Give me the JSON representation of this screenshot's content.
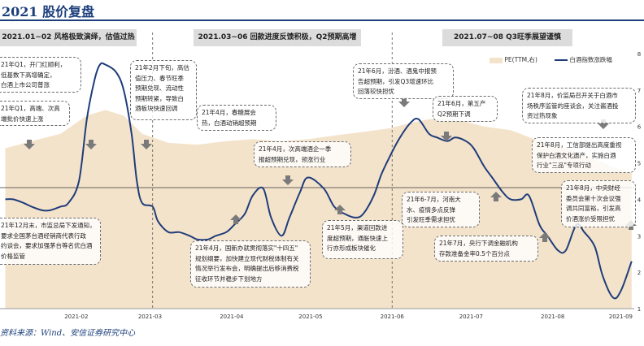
{
  "title": "2021 股价复盘",
  "source": "资料来源：Wind、安信证券研究中心",
  "colors": {
    "line": "#1f3d7a",
    "area": "#f4e3cb",
    "phase_bg": "#dcdcdc",
    "heading": "#1c3f7c"
  },
  "phases": [
    "2021.01~02 风格极致演绎，估值过热",
    "2021.03~06 回款进度反馈积极，Q2预期高增",
    "2021.07~08 Q3旺季展望谨慎"
  ],
  "notes": [
    "21年Q1，开门红顺利，\n低基数下高增确定，\n白酒上市公司普涨",
    "21年Q1，高端、次高\n端批价快速上涨",
    "21年2月下旬，高估\n值压力、春节旺季\n预期兑现、流动性\n预期转紧，导致白\n酒板块快速回调",
    "21年4月，春糖展会\n热，白酒动销超预期",
    "21年4月，次高端酒企一季\n报超预期兑现，领涨行业",
    "21年6月，汾酒、酒鬼中报预\n告超预期，引发Q3增速环比\n回落较快担忧",
    "21年6月，第五产\nQ2预期下调",
    "21年8月，价监局召开关于白酒市\n场秩序监管的座谈会，关注酱酒投\n资过热现象",
    "21年8月，工信部提出高度重视\n保护白酒文化遗产，实施白酒\n行业\"三品\"专项行动",
    "21年8月，中央财经\n委员会第十次会议强\n调共同富裕，引发高\n价酒涨价受限担忧",
    "21年6-7月，河南大\n水、疫情多点反弹\n引发旺季需求担忧",
    "21年5月，渠道回款进\n度超预期，通胀快速上\n行亦形成板块催化",
    "21年7月，央行下调金融机构\n存款准备金率0.5个百分点",
    "21年4月，国新办就贯彻落实\"十四五\"\n规划纲要，加快建立现代财税体制有关\n情况举行发布会，明确提出后移消费税\n征收环节并稳步下划地方",
    "21年12月末，市监总局下发通知，\n要求全国茅台酒经销商代表行政\n约谈会，要求加强茅台等名优白酒\n价格监管"
  ],
  "chart_data": {
    "type": "line",
    "title": "",
    "x_ticks": [
      "2021-02",
      "2021-03",
      "2021-04",
      "2021-05",
      "2021-06",
      "2021-07",
      "2021-08",
      "2021-09"
    ],
    "series": [
      {
        "name": "白酒指数涨跌幅",
        "type": "line",
        "axis": "left",
        "x": [
          "2021-01-05",
          "2021-01-08",
          "2021-01-12",
          "2021-01-15",
          "2021-01-19",
          "2021-01-22",
          "2021-01-26",
          "2021-01-29",
          "2021-02-02",
          "2021-02-05",
          "2021-02-08",
          "2021-02-10",
          "2021-02-12",
          "2021-02-16",
          "2021-02-19",
          "2021-02-22",
          "2021-02-24",
          "2021-02-26",
          "2021-03-02",
          "2021-03-04",
          "2021-03-08",
          "2021-03-12",
          "2021-03-16",
          "2021-03-19",
          "2021-03-23",
          "2021-03-26",
          "2021-03-30",
          "2021-04-02",
          "2021-04-06",
          "2021-04-09",
          "2021-04-13",
          "2021-04-16",
          "2021-04-20",
          "2021-04-23",
          "2021-04-27",
          "2021-04-30",
          "2021-05-06",
          "2021-05-10",
          "2021-05-14",
          "2021-05-18",
          "2021-05-21",
          "2021-05-25",
          "2021-05-28",
          "2021-06-01",
          "2021-06-04",
          "2021-06-08",
          "2021-06-11",
          "2021-06-15",
          "2021-06-18",
          "2021-06-22",
          "2021-06-25",
          "2021-06-29",
          "2021-07-02",
          "2021-07-06",
          "2021-07-09",
          "2021-07-13",
          "2021-07-16",
          "2021-07-20",
          "2021-07-23",
          "2021-07-27",
          "2021-07-30",
          "2021-08-03",
          "2021-08-06",
          "2021-08-10",
          "2021-08-13",
          "2021-08-17",
          "2021-08-20",
          "2021-08-24",
          "2021-08-27",
          "2021-08-31"
        ],
        "values": [
          0.4,
          0.4,
          0.39,
          0.38,
          0.37,
          0.37,
          0.38,
          0.39,
          0.45,
          0.62,
          0.73,
          0.77,
          0.77,
          0.75,
          0.7,
          0.58,
          0.45,
          0.39,
          0.38,
          0.34,
          0.31,
          0.31,
          0.3,
          0.29,
          0.29,
          0.3,
          0.31,
          0.33,
          0.36,
          0.41,
          0.43,
          0.35,
          0.3,
          0.35,
          0.42,
          0.46,
          0.43,
          0.38,
          0.36,
          0.35,
          0.36,
          0.41,
          0.47,
          0.53,
          0.57,
          0.61,
          0.62,
          0.58,
          0.57,
          0.56,
          0.57,
          0.56,
          0.54,
          0.49,
          0.46,
          0.42,
          0.4,
          0.4,
          0.41,
          0.33,
          0.3,
          0.26,
          0.26,
          0.33,
          0.31,
          0.27,
          0.19,
          0.13,
          0.15,
          0.23
        ]
      },
      {
        "name": "PE(TTM,右)",
        "type": "area",
        "axis": "right",
        "x": [
          "2021-01-05",
          "2021-01-15",
          "2021-01-26",
          "2021-02-05",
          "2021-02-12",
          "2021-02-19",
          "2021-02-26",
          "2021-03-08",
          "2021-03-19",
          "2021-03-30",
          "2021-04-09",
          "2021-04-20",
          "2021-04-30",
          "2021-05-10",
          "2021-05-21",
          "2021-05-31",
          "2021-06-08",
          "2021-06-15",
          "2021-06-25",
          "2021-07-06",
          "2021-07-16",
          "2021-07-27",
          "2021-08-06",
          "2021-08-17",
          "2021-08-27",
          "2021-08-31"
        ],
        "values": [
          5.4,
          5.6,
          5.8,
          6.3,
          6.45,
          6.3,
          5.8,
          5.55,
          5.5,
          5.6,
          5.65,
          5.6,
          5.65,
          5.75,
          5.85,
          5.95,
          6.1,
          6.2,
          6.2,
          6.0,
          5.9,
          5.6,
          5.4,
          5.1,
          4.8,
          4.75
        ]
      }
    ],
    "y_left": {
      "range": [
        0.1,
        0.8
      ],
      "ticks": [],
      "visible": false
    },
    "y_right": {
      "range": [
        1,
        8
      ],
      "ticks": [
        "1",
        "2",
        "3",
        "4",
        "5",
        "6",
        "7",
        "8"
      ]
    },
    "legend": {
      "position": "top-right",
      "entries": [
        "PE(TTM,右)",
        "白酒指数涨跌幅"
      ]
    },
    "grid": false
  }
}
